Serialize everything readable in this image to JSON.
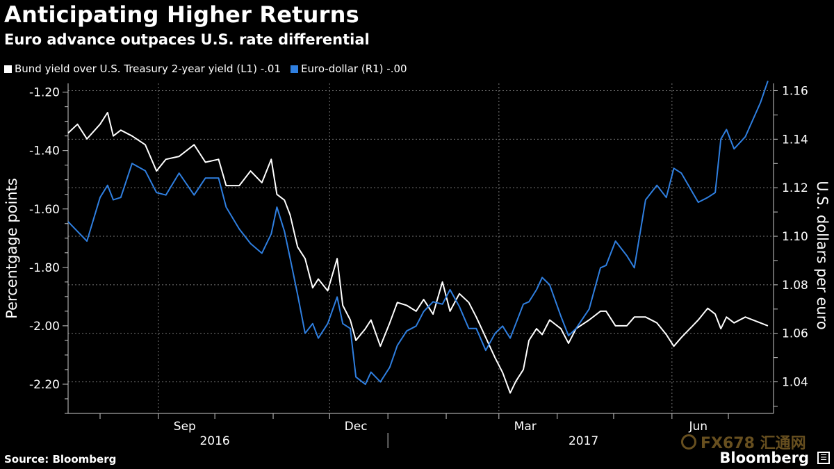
{
  "title": "Anticipating Higher Returns",
  "subtitle": "Euro advance outpaces U.S. rate differential",
  "source": "Source: Bloomberg",
  "brand": "Bloomberg",
  "brand_box_glyph": "☰",
  "watermark": "FX678 汇通网",
  "colors": {
    "background": "#000000",
    "series1": "#ffffff",
    "series2": "#2f7fe0",
    "grid": "#777777"
  },
  "chart_data": {
    "type": "line",
    "title": "Anticipating Higher Returns",
    "subtitle": "Euro advance outpaces U.S. rate differential",
    "ylabel_left": "Percentgage points",
    "ylabel_right": "U.S. dollars per euro",
    "ylim_left": [
      -2.3,
      -1.17
    ],
    "ylim_right": [
      1.027,
      1.163
    ],
    "yticks_left": [
      "-1.20",
      "-1.40",
      "-1.60",
      "-1.80",
      "-2.00",
      "-2.20"
    ],
    "yticks_right": [
      "1.16",
      "1.14",
      "1.12",
      "1.10",
      "1.08",
      "1.06",
      "1.04"
    ],
    "x_month_labels": [
      "Sep",
      "Dec",
      "Mar",
      "Jun"
    ],
    "x_year_labels": [
      "2016",
      "2017"
    ],
    "x_range": [
      "2016-07-15",
      "2017-07-25"
    ],
    "grid": true,
    "legend_position": "top-left",
    "series": [
      {
        "name": "Bund yield over U.S. Treasury 2-year yield (L1) -.01",
        "axis": "left",
        "color": "#ffffff",
        "points": [
          [
            "2016-07-15",
            -1.34
          ],
          [
            "2016-07-20",
            -1.31
          ],
          [
            "2016-07-25",
            -1.36
          ],
          [
            "2016-08-01",
            -1.31
          ],
          [
            "2016-08-05",
            -1.27
          ],
          [
            "2016-08-08",
            -1.35
          ],
          [
            "2016-08-12",
            -1.33
          ],
          [
            "2016-08-18",
            -1.35
          ],
          [
            "2016-08-25",
            -1.38
          ],
          [
            "2016-08-31",
            -1.47
          ],
          [
            "2016-09-05",
            -1.43
          ],
          [
            "2016-09-12",
            -1.42
          ],
          [
            "2016-09-20",
            -1.38
          ],
          [
            "2016-09-26",
            -1.44
          ],
          [
            "2016-10-03",
            -1.43
          ],
          [
            "2016-10-07",
            -1.52
          ],
          [
            "2016-10-14",
            -1.52
          ],
          [
            "2016-10-20",
            -1.47
          ],
          [
            "2016-10-26",
            -1.51
          ],
          [
            "2016-10-31",
            -1.43
          ],
          [
            "2016-11-03",
            -1.55
          ],
          [
            "2016-11-07",
            -1.57
          ],
          [
            "2016-11-10",
            -1.62
          ],
          [
            "2016-11-14",
            -1.73
          ],
          [
            "2016-11-18",
            -1.77
          ],
          [
            "2016-11-22",
            -1.87
          ],
          [
            "2016-11-25",
            -1.84
          ],
          [
            "2016-11-30",
            -1.88
          ],
          [
            "2016-12-05",
            -1.77
          ],
          [
            "2016-12-08",
            -1.93
          ],
          [
            "2016-12-12",
            -1.98
          ],
          [
            "2016-12-15",
            -2.05
          ],
          [
            "2016-12-20",
            -2.01
          ],
          [
            "2016-12-23",
            -1.98
          ],
          [
            "2016-12-28",
            -2.07
          ],
          [
            "2017-01-02",
            -1.99
          ],
          [
            "2017-01-06",
            -1.92
          ],
          [
            "2017-01-11",
            -1.93
          ],
          [
            "2017-01-16",
            -1.95
          ],
          [
            "2017-01-20",
            -1.91
          ],
          [
            "2017-01-25",
            -1.96
          ],
          [
            "2017-01-30",
            -1.85
          ],
          [
            "2017-02-03",
            -1.95
          ],
          [
            "2017-02-08",
            -1.89
          ],
          [
            "2017-02-13",
            -1.92
          ],
          [
            "2017-02-17",
            -1.97
          ],
          [
            "2017-02-22",
            -2.04
          ],
          [
            "2017-02-27",
            -2.11
          ],
          [
            "2017-03-03",
            -2.16
          ],
          [
            "2017-03-07",
            -2.23
          ],
          [
            "2017-03-10",
            -2.19
          ],
          [
            "2017-03-14",
            -2.15
          ],
          [
            "2017-03-17",
            -2.05
          ],
          [
            "2017-03-21",
            -2.01
          ],
          [
            "2017-03-24",
            -2.03
          ],
          [
            "2017-03-28",
            -1.98
          ],
          [
            "2017-04-03",
            -2.01
          ],
          [
            "2017-04-07",
            -2.06
          ],
          [
            "2017-04-11",
            -2.01
          ],
          [
            "2017-04-18",
            -1.98
          ],
          [
            "2017-04-24",
            -1.95
          ],
          [
            "2017-04-27",
            -1.95
          ],
          [
            "2017-05-02",
            -2.0
          ],
          [
            "2017-05-08",
            -2.0
          ],
          [
            "2017-05-12",
            -1.97
          ],
          [
            "2017-05-18",
            -1.97
          ],
          [
            "2017-05-24",
            -1.99
          ],
          [
            "2017-05-29",
            -2.03
          ],
          [
            "2017-06-02",
            -2.07
          ],
          [
            "2017-06-06",
            -2.04
          ],
          [
            "2017-06-12",
            -2.0
          ],
          [
            "2017-06-15",
            -1.98
          ],
          [
            "2017-06-20",
            -1.94
          ],
          [
            "2017-06-24",
            -1.96
          ],
          [
            "2017-06-27",
            -2.01
          ],
          [
            "2017-06-30",
            -1.97
          ],
          [
            "2017-07-04",
            -1.99
          ],
          [
            "2017-07-10",
            -1.97
          ],
          [
            "2017-07-18",
            -1.99
          ],
          [
            "2017-07-22",
            -2.0
          ]
        ]
      },
      {
        "name": "Euro-dollar (R1) -.00",
        "axis": "right",
        "color": "#2f7fe0",
        "points": [
          [
            "2016-07-15",
            1.106
          ],
          [
            "2016-07-20",
            1.102
          ],
          [
            "2016-07-25",
            1.098
          ],
          [
            "2016-08-01",
            1.116
          ],
          [
            "2016-08-05",
            1.121
          ],
          [
            "2016-08-08",
            1.115
          ],
          [
            "2016-08-12",
            1.116
          ],
          [
            "2016-08-18",
            1.13
          ],
          [
            "2016-08-25",
            1.127
          ],
          [
            "2016-08-31",
            1.118
          ],
          [
            "2016-09-05",
            1.117
          ],
          [
            "2016-09-12",
            1.126
          ],
          [
            "2016-09-20",
            1.117
          ],
          [
            "2016-09-26",
            1.124
          ],
          [
            "2016-10-03",
            1.124
          ],
          [
            "2016-10-07",
            1.112
          ],
          [
            "2016-10-14",
            1.103
          ],
          [
            "2016-10-20",
            1.097
          ],
          [
            "2016-10-26",
            1.093
          ],
          [
            "2016-10-31",
            1.101
          ],
          [
            "2016-11-03",
            1.112
          ],
          [
            "2016-11-07",
            1.102
          ],
          [
            "2016-11-10",
            1.091
          ],
          [
            "2016-11-14",
            1.076
          ],
          [
            "2016-11-18",
            1.06
          ],
          [
            "2016-11-22",
            1.064
          ],
          [
            "2016-11-25",
            1.058
          ],
          [
            "2016-11-30",
            1.064
          ],
          [
            "2016-12-05",
            1.075
          ],
          [
            "2016-12-08",
            1.064
          ],
          [
            "2016-12-12",
            1.062
          ],
          [
            "2016-12-15",
            1.042
          ],
          [
            "2016-12-20",
            1.039
          ],
          [
            "2016-12-23",
            1.044
          ],
          [
            "2016-12-28",
            1.04
          ],
          [
            "2017-01-02",
            1.046
          ],
          [
            "2017-01-06",
            1.055
          ],
          [
            "2017-01-11",
            1.061
          ],
          [
            "2017-01-16",
            1.063
          ],
          [
            "2017-01-20",
            1.069
          ],
          [
            "2017-01-25",
            1.073
          ],
          [
            "2017-01-30",
            1.072
          ],
          [
            "2017-02-03",
            1.078
          ],
          [
            "2017-02-08",
            1.071
          ],
          [
            "2017-02-13",
            1.062
          ],
          [
            "2017-02-17",
            1.062
          ],
          [
            "2017-02-22",
            1.053
          ],
          [
            "2017-02-27",
            1.06
          ],
          [
            "2017-03-03",
            1.063
          ],
          [
            "2017-03-07",
            1.058
          ],
          [
            "2017-03-10",
            1.064
          ],
          [
            "2017-03-14",
            1.072
          ],
          [
            "2017-03-17",
            1.073
          ],
          [
            "2017-03-21",
            1.078
          ],
          [
            "2017-03-24",
            1.083
          ],
          [
            "2017-03-28",
            1.08
          ],
          [
            "2017-04-03",
            1.067
          ],
          [
            "2017-04-07",
            1.059
          ],
          [
            "2017-04-11",
            1.062
          ],
          [
            "2017-04-18",
            1.07
          ],
          [
            "2017-04-24",
            1.087
          ],
          [
            "2017-04-27",
            1.088
          ],
          [
            "2017-05-02",
            1.098
          ],
          [
            "2017-05-08",
            1.092
          ],
          [
            "2017-05-12",
            1.087
          ],
          [
            "2017-05-18",
            1.115
          ],
          [
            "2017-05-24",
            1.121
          ],
          [
            "2017-05-29",
            1.116
          ],
          [
            "2017-06-02",
            1.128
          ],
          [
            "2017-06-06",
            1.126
          ],
          [
            "2017-06-12",
            1.118
          ],
          [
            "2017-06-15",
            1.114
          ],
          [
            "2017-06-20",
            1.116
          ],
          [
            "2017-06-24",
            1.118
          ],
          [
            "2017-06-27",
            1.14
          ],
          [
            "2017-06-30",
            1.144
          ],
          [
            "2017-07-04",
            1.136
          ],
          [
            "2017-07-10",
            1.141
          ],
          [
            "2017-07-18",
            1.155
          ],
          [
            "2017-07-22",
            1.164
          ]
        ]
      }
    ]
  }
}
